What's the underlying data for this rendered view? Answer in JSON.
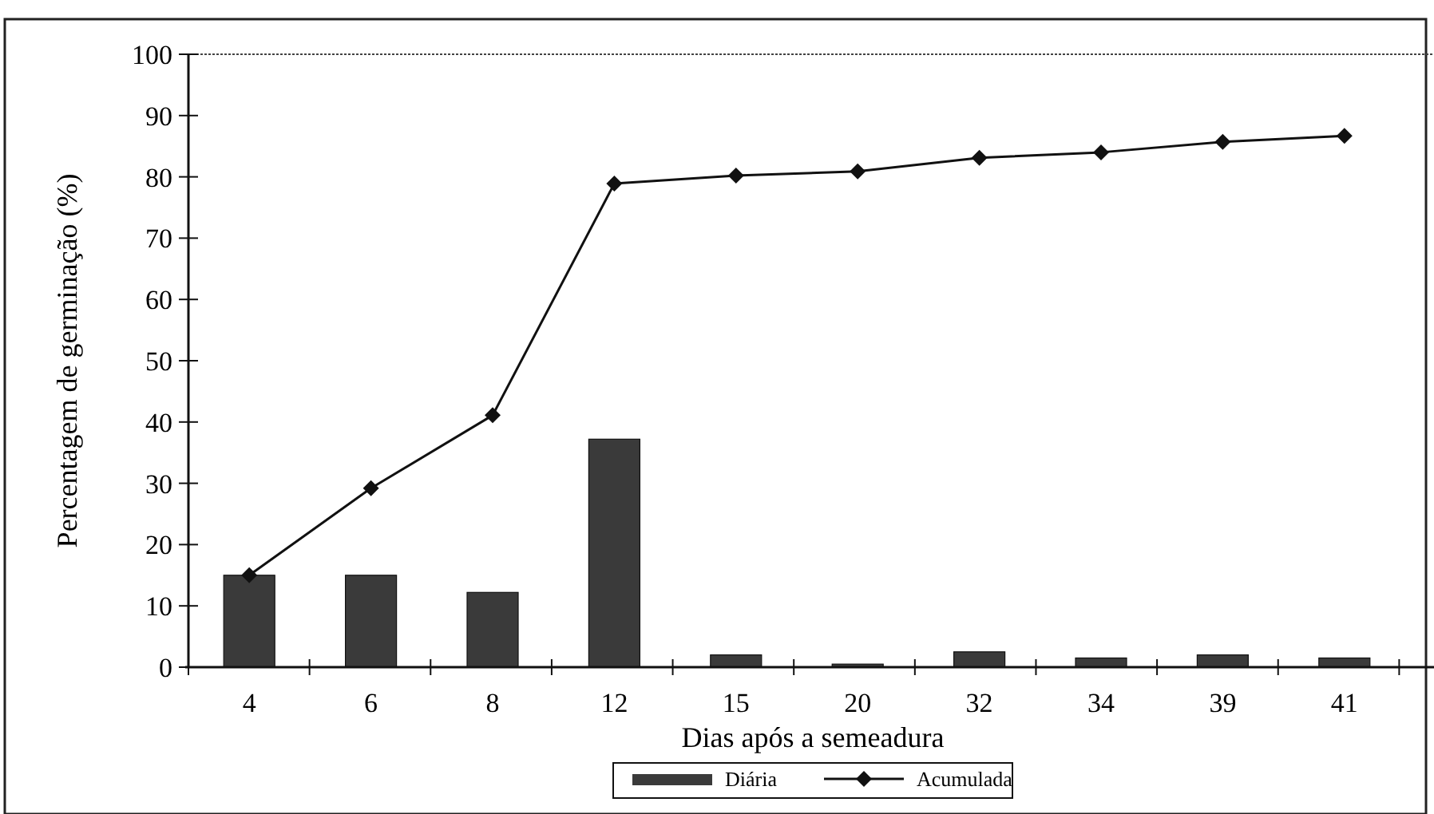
{
  "chart_data": {
    "type": "bar",
    "xlabel": "Dias após a semeadura",
    "ylabel": "Percentagem de germinação (%)",
    "categories": [
      "4",
      "6",
      "8",
      "12",
      "15",
      "20",
      "32",
      "34",
      "39",
      "41"
    ],
    "series": [
      {
        "name": "Diária",
        "color": "#3a3a3a",
        "values": [
          15,
          15,
          12.2,
          37.2,
          2,
          0.5,
          2.5,
          1.5,
          2,
          1.5
        ]
      },
      {
        "name": "Acumulada",
        "type": "line",
        "color": "#111111",
        "marker": "diamond",
        "values": [
          15,
          29.2,
          41.1,
          78.9,
          80.2,
          80.9,
          83.1,
          84,
          85.7,
          86.7
        ]
      }
    ],
    "ylim": [
      0,
      100
    ],
    "yticks": [
      0,
      10,
      20,
      30,
      40,
      50,
      60,
      70,
      80,
      90,
      100
    ],
    "legend": "bottom"
  }
}
